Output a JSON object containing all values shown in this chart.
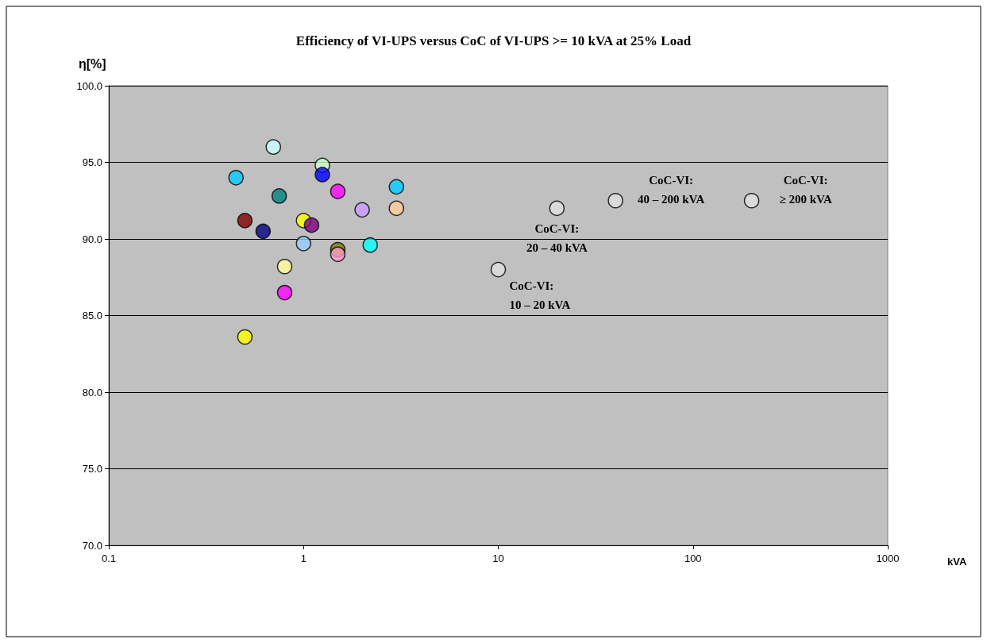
{
  "chart_data": {
    "type": "scatter",
    "title": "Efficiency of VI-UPS versus CoC of VI-UPS >= 10 kVA at 25% Load",
    "xlabel": "kVA",
    "ylabel": "η[%]",
    "log": "x",
    "grid": "y",
    "marker": "circle",
    "xlim": [
      0.1,
      1000
    ],
    "xticks": [
      0.1,
      1,
      10,
      100,
      1000
    ],
    "ylim": [
      70,
      100
    ],
    "yticks": [
      {
        "value": 70,
        "label": "70.0"
      },
      {
        "value": 75,
        "label": "75.0"
      },
      {
        "value": 80,
        "label": "80.0"
      },
      {
        "value": 85,
        "label": "85.0"
      },
      {
        "value": 90,
        "label": "90.0"
      },
      {
        "value": 95,
        "label": "95.0"
      },
      {
        "value": 100,
        "label": "100.0"
      }
    ],
    "series": [
      {
        "x": [
          0.7,
          1.25,
          1.25,
          0.45,
          1.5,
          0.75,
          3,
          2,
          3,
          0.5,
          1,
          1.1,
          0.62,
          1,
          1.5,
          1.5,
          2.2,
          0.8,
          0.8,
          0.5,
          10,
          20,
          40,
          200
        ],
        "values": [
          96.0,
          94.8,
          94.2,
          94.0,
          93.1,
          92.8,
          93.4,
          91.9,
          92.0,
          91.2,
          91.2,
          90.9,
          90.5,
          89.7,
          89.3,
          89.0,
          89.6,
          88.2,
          86.5,
          83.6,
          88.0,
          92.0,
          92.5,
          92.5
        ],
        "colors": [
          "#ccffff",
          "#ccffcc",
          "#0000ff",
          "#00ccff",
          "#ff00ff",
          "#008080",
          "#00ccff",
          "#cc99ff",
          "#ffcc99",
          "#800000",
          "#ffff00",
          "#800080",
          "#000080",
          "#99ccff",
          "#808000",
          "#ff99cc",
          "#00ffff",
          "#ffff99",
          "#ff00ff",
          "#ffff00",
          "#e0e0e0",
          "#e0e0e0",
          "#e0e0e0",
          "#e0e0e0"
        ]
      }
    ],
    "annotations": [
      {
        "text": "CoC-VI:\n10 – 20 kVA",
        "x": 10,
        "y": 88.0
      },
      {
        "text": "CoC-VI:\n20 – 40 kVA",
        "x": 20,
        "y": 92.0
      },
      {
        "text": "CoC-VI:\n40 – 200 kVA",
        "x": 40,
        "y": 92.5
      },
      {
        "text": "CoC-VI:\n≥ 200 kVA",
        "x": 200,
        "y": 92.5
      }
    ]
  }
}
